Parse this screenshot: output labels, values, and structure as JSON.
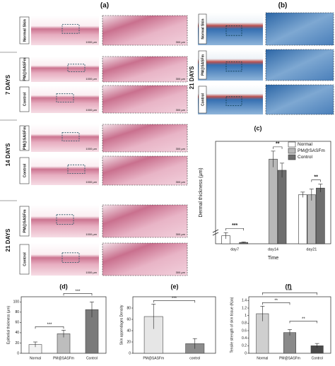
{
  "histology_a": {
    "label": "(a)",
    "scale_low": "1000 µm",
    "scale_high": "300 µm",
    "groups": [
      {
        "rows": [
          "Normal Skin"
        ]
      },
      {
        "title": "7 DAYS",
        "rows": [
          "PM@SASFm",
          "Control"
        ]
      },
      {
        "title": "14 DAYS",
        "rows": [
          "PM@SASFm",
          "Control"
        ]
      },
      {
        "title": "21 DAYS",
        "rows": [
          "PM@SASFm",
          "Control"
        ]
      }
    ]
  },
  "histology_b": {
    "label": "(b)",
    "title": "21 DAYS",
    "rows": [
      "Normal Skin",
      "PM@SASFm",
      "Control"
    ]
  },
  "chart_data": [
    {
      "type": "grouped_bar",
      "title": "(c)",
      "ylabel": "Dermal thickness (µm)",
      "xlabel": "Time",
      "categories": [
        "day7",
        "day14",
        "day21"
      ],
      "ylim": [
        0,
        2300
      ],
      "legend": "upper right",
      "series": [
        {
          "name": "Normal",
          "color": "#ffffff",
          "values": [
            180,
            null,
            1100
          ],
          "errors": [
            70,
            null,
            60
          ]
        },
        {
          "name": "PM@SASFm",
          "color": "#b8b8b8",
          "values": [
            null,
            1900,
            1100
          ],
          "errors": [
            null,
            180,
            130
          ]
        },
        {
          "name": "Control",
          "color": "#6e6e6e",
          "values": [
            30,
            1650,
            1250
          ],
          "errors": [
            10,
            160,
            90
          ]
        }
      ],
      "significance": [
        {
          "label": "***",
          "category": 0,
          "pair": [
            0,
            2
          ]
        },
        {
          "label": "**",
          "category": 1,
          "pair": [
            1,
            2
          ]
        },
        {
          "label": "**",
          "category": 2,
          "pair": [
            1,
            2
          ]
        }
      ]
    },
    {
      "type": "bar",
      "title": "(d)",
      "ylabel": "Epithelial thickness (µm)",
      "categories": [
        "Normal",
        "PM@SASFm",
        "Control"
      ],
      "values": [
        17,
        38,
        85
      ],
      "errors": [
        5,
        7,
        15
      ],
      "colors": [
        "#f2f2f2",
        "#bdbdbd",
        "#7a7a7a"
      ],
      "ylim": [
        0,
        110
      ],
      "yticks": [
        0,
        20,
        40,
        60,
        80,
        100
      ],
      "significance": [
        {
          "label": "***",
          "pair": [
            0,
            1
          ]
        },
        {
          "label": "***",
          "pair": [
            1,
            2
          ]
        }
      ]
    },
    {
      "type": "bar",
      "title": "(e)",
      "ylabel": "Skin appendages Density",
      "categories": [
        "PM@SASFm",
        "control"
      ],
      "values": [
        65,
        17
      ],
      "errors": [
        22,
        9
      ],
      "colors": [
        "#e6e6e6",
        "#8c8c8c"
      ],
      "ylim": [
        0,
        100
      ],
      "yticks": [
        0,
        20,
        40,
        60,
        80
      ],
      "significance": [
        {
          "label": "***",
          "pair": [
            0,
            1
          ]
        }
      ]
    },
    {
      "type": "bar",
      "title": "(f)",
      "ylabel": "Tensile strength of skin tissue (Kpa)",
      "categories": [
        "Normal",
        "PM@SASFm",
        "Control"
      ],
      "values": [
        1.05,
        0.55,
        0.2
      ],
      "errors": [
        0.2,
        0.08,
        0.06
      ],
      "colors": [
        "#cfcfcf",
        "#8a8a8a",
        "#4a4a4a"
      ],
      "ylim": [
        0,
        1.5
      ],
      "yticks": [
        0,
        0.2,
        0.4,
        0.6,
        0.8,
        1,
        1.2,
        1.4
      ],
      "significance": [
        {
          "label": "**",
          "pair": [
            0,
            1
          ]
        },
        {
          "label": "**",
          "pair": [
            1,
            2
          ]
        },
        {
          "label": "***",
          "pair": [
            0,
            2
          ]
        }
      ]
    }
  ]
}
